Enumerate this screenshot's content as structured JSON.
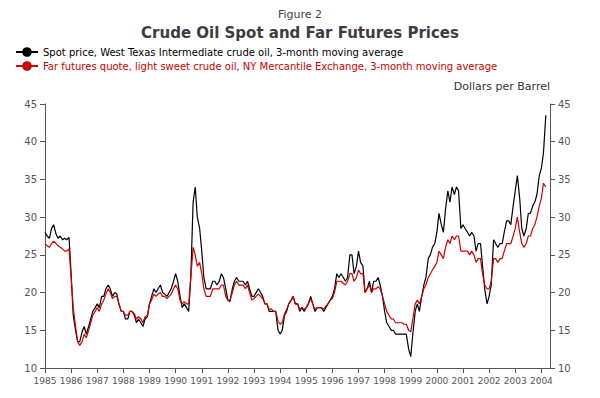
{
  "chart_data": {
    "type": "line",
    "title": "Crude Oil Spot and Far Futures Prices",
    "subtitle": "Figure 2",
    "y2label": "Dollars per Barrel",
    "xlim": [
      1985.0,
      2004.33
    ],
    "xticks": [
      1985,
      1986,
      1987,
      1988,
      1989,
      1990,
      1991,
      1992,
      1993,
      1994,
      1995,
      1996,
      1997,
      1998,
      1999,
      2000,
      2001,
      2002,
      2003,
      2004
    ],
    "ylim": [
      10,
      45
    ],
    "yticks": [
      10,
      15,
      20,
      25,
      30,
      35,
      40,
      45
    ],
    "y2lim": [
      10,
      45
    ],
    "y2ticks": [
      10,
      15,
      20,
      25,
      30,
      35,
      40,
      45
    ],
    "grid": false,
    "legend": "upper left",
    "x": [
      1985.0,
      1985.08,
      1985.17,
      1985.25,
      1985.33,
      1985.42,
      1985.5,
      1985.58,
      1985.67,
      1985.75,
      1985.83,
      1985.92,
      1986.0,
      1986.08,
      1986.17,
      1986.25,
      1986.33,
      1986.42,
      1986.5,
      1986.58,
      1986.67,
      1986.75,
      1986.83,
      1986.92,
      1987.0,
      1987.08,
      1987.17,
      1987.25,
      1987.33,
      1987.42,
      1987.5,
      1987.58,
      1987.67,
      1987.75,
      1987.83,
      1987.92,
      1988.0,
      1988.08,
      1988.17,
      1988.25,
      1988.33,
      1988.42,
      1988.5,
      1988.58,
      1988.67,
      1988.75,
      1988.83,
      1988.92,
      1989.0,
      1989.08,
      1989.17,
      1989.25,
      1989.33,
      1989.42,
      1989.5,
      1989.58,
      1989.67,
      1989.75,
      1989.83,
      1989.92,
      1990.0,
      1990.08,
      1990.17,
      1990.25,
      1990.33,
      1990.42,
      1990.5,
      1990.58,
      1990.67,
      1990.75,
      1990.83,
      1990.92,
      1991.0,
      1991.08,
      1991.17,
      1991.25,
      1991.33,
      1991.42,
      1991.5,
      1991.58,
      1991.67,
      1991.75,
      1991.83,
      1991.92,
      1992.0,
      1992.08,
      1992.17,
      1992.25,
      1992.33,
      1992.42,
      1992.5,
      1992.58,
      1992.67,
      1992.75,
      1992.83,
      1992.92,
      1993.0,
      1993.08,
      1993.17,
      1993.25,
      1993.33,
      1993.42,
      1993.5,
      1993.58,
      1993.67,
      1993.75,
      1993.83,
      1993.92,
      1994.0,
      1994.08,
      1994.17,
      1994.25,
      1994.33,
      1994.42,
      1994.5,
      1994.58,
      1994.67,
      1994.75,
      1994.83,
      1994.92,
      1995.0,
      1995.08,
      1995.17,
      1995.25,
      1995.33,
      1995.42,
      1995.5,
      1995.58,
      1995.67,
      1995.75,
      1995.83,
      1995.92,
      1996.0,
      1996.08,
      1996.17,
      1996.25,
      1996.33,
      1996.42,
      1996.5,
      1996.58,
      1996.67,
      1996.75,
      1996.83,
      1996.92,
      1997.0,
      1997.08,
      1997.17,
      1997.25,
      1997.33,
      1997.42,
      1997.5,
      1997.58,
      1997.67,
      1997.75,
      1997.83,
      1997.92,
      1998.0,
      1998.08,
      1998.17,
      1998.25,
      1998.33,
      1998.42,
      1998.5,
      1998.58,
      1998.67,
      1998.75,
      1998.83,
      1998.92,
      1999.0,
      1999.08,
      1999.17,
      1999.25,
      1999.33,
      1999.42,
      1999.5,
      1999.58,
      1999.67,
      1999.75,
      1999.83,
      1999.92,
      2000.0,
      2000.08,
      2000.17,
      2000.25,
      2000.33,
      2000.42,
      2000.5,
      2000.58,
      2000.67,
      2000.75,
      2000.83,
      2000.92,
      2001.0,
      2001.08,
      2001.17,
      2001.25,
      2001.33,
      2001.42,
      2001.5,
      2001.58,
      2001.67,
      2001.75,
      2001.83,
      2001.92,
      2002.0,
      2002.08,
      2002.17,
      2002.25,
      2002.33,
      2002.42,
      2002.5,
      2002.58,
      2002.67,
      2002.75,
      2002.83,
      2002.92,
      2003.0,
      2003.08,
      2003.17,
      2003.25,
      2003.33,
      2003.42,
      2003.5,
      2003.58,
      2003.67,
      2003.75,
      2003.83,
      2003.92,
      2004.0,
      2004.08,
      2004.17
    ],
    "series": [
      {
        "name": "Spot price, West Texas Intermediate crude oil, 3-month moving average",
        "color": "#000000",
        "values": [
          28.0,
          27.5,
          27.2,
          28.5,
          29.0,
          27.8,
          27.2,
          27.5,
          27.0,
          27.2,
          27.0,
          27.3,
          22.5,
          17.0,
          15.0,
          13.5,
          13.5,
          14.8,
          15.5,
          14.5,
          15.5,
          16.5,
          17.5,
          18.0,
          18.5,
          18.0,
          19.5,
          19.5,
          20.5,
          21.0,
          20.5,
          19.5,
          20.0,
          19.8,
          18.5,
          17.5,
          17.5,
          16.5,
          16.5,
          17.5,
          17.5,
          17.0,
          16.0,
          16.5,
          16.0,
          15.5,
          16.5,
          16.8,
          18.5,
          19.5,
          20.5,
          20.0,
          20.5,
          21.0,
          20.0,
          19.8,
          19.5,
          20.0,
          20.5,
          21.5,
          22.5,
          21.5,
          19.5,
          18.0,
          18.5,
          18.0,
          17.5,
          22.0,
          32.0,
          34.0,
          30.0,
          28.5,
          25.5,
          22.0,
          20.5,
          20.5,
          20.5,
          21.5,
          21.5,
          21.0,
          21.5,
          22.5,
          22.0,
          20.5,
          19.0,
          18.8,
          20.5,
          21.5,
          22.0,
          21.5,
          21.5,
          21.5,
          21.0,
          21.5,
          20.5,
          19.5,
          19.5,
          20.0,
          20.5,
          20.0,
          19.5,
          18.5,
          18.5,
          17.5,
          17.5,
          17.5,
          17.5,
          15.0,
          14.5,
          15.0,
          17.0,
          17.5,
          18.5,
          19.0,
          19.5,
          18.5,
          18.5,
          17.5,
          18.0,
          17.5,
          18.0,
          18.5,
          19.5,
          18.5,
          17.5,
          18.0,
          18.0,
          18.0,
          17.5,
          18.0,
          18.5,
          19.0,
          19.5,
          20.5,
          22.5,
          22.0,
          22.5,
          22.0,
          21.5,
          22.0,
          25.0,
          25.0,
          22.5,
          23.5,
          25.5,
          24.0,
          23.5,
          20.0,
          20.5,
          21.5,
          20.0,
          21.5,
          21.5,
          22.0,
          21.0,
          19.5,
          17.5,
          16.0,
          15.5,
          15.0,
          15.0,
          14.5,
          14.5,
          14.5,
          14.5,
          14.5,
          14.5,
          12.5,
          11.5,
          14.5,
          17.5,
          18.5,
          17.5,
          19.5,
          21.0,
          22.0,
          24.5,
          25.0,
          26.0,
          26.5,
          28.0,
          30.5,
          29.0,
          28.0,
          31.0,
          33.5,
          32.0,
          34.0,
          33.0,
          34.0,
          33.5,
          28.5,
          29.0,
          28.5,
          28.0,
          27.5,
          28.0,
          27.5,
          25.5,
          26.5,
          26.5,
          23.5,
          20.5,
          18.5,
          19.5,
          21.0,
          27.0,
          26.5,
          26.0,
          26.5,
          26.5,
          28.0,
          29.5,
          29.5,
          29.0,
          31.5,
          33.5,
          35.5,
          32.5,
          28.5,
          27.5,
          28.5,
          30.5,
          30.5,
          31.5,
          32.0,
          33.0,
          35.5,
          36.5,
          38.5,
          43.5
        ]
      },
      {
        "name": "Far futures quote, light sweet crude oil, NY Mercantile Exchange, 3-month moving average",
        "color": "#cc0000",
        "values": [
          26.5,
          26.2,
          26.0,
          26.5,
          26.8,
          26.5,
          26.2,
          26.0,
          25.8,
          25.5,
          25.5,
          25.8,
          22.0,
          18.0,
          15.5,
          13.5,
          13.0,
          13.5,
          14.5,
          14.0,
          15.0,
          16.0,
          17.0,
          17.5,
          18.0,
          17.5,
          18.5,
          19.0,
          19.8,
          20.5,
          20.0,
          19.2,
          19.5,
          19.5,
          18.5,
          17.5,
          17.5,
          17.0,
          17.0,
          17.5,
          17.5,
          17.2,
          16.5,
          16.8,
          16.5,
          16.0,
          16.8,
          17.0,
          18.5,
          19.0,
          19.8,
          19.5,
          19.8,
          20.0,
          19.5,
          19.5,
          19.2,
          19.5,
          19.8,
          20.5,
          21.0,
          20.5,
          19.0,
          18.5,
          18.8,
          18.5,
          18.5,
          22.0,
          26.0,
          25.0,
          23.5,
          24.0,
          22.5,
          20.5,
          19.5,
          19.5,
          19.5,
          20.5,
          20.5,
          20.5,
          20.5,
          21.0,
          21.0,
          19.5,
          19.0,
          19.0,
          20.0,
          21.0,
          21.5,
          21.0,
          21.0,
          21.0,
          20.5,
          21.0,
          20.0,
          19.0,
          19.2,
          19.5,
          19.8,
          19.5,
          19.2,
          18.5,
          18.5,
          17.8,
          17.8,
          17.5,
          17.5,
          16.2,
          15.8,
          16.0,
          17.2,
          17.8,
          18.5,
          19.0,
          19.5,
          18.5,
          18.5,
          17.8,
          18.0,
          17.8,
          18.0,
          18.5,
          19.2,
          18.5,
          17.8,
          18.0,
          18.0,
          18.0,
          17.8,
          18.2,
          18.5,
          19.0,
          19.2,
          20.0,
          21.5,
          21.5,
          21.5,
          21.2,
          21.0,
          21.5,
          22.5,
          22.5,
          21.5,
          22.0,
          23.0,
          22.5,
          22.5,
          20.0,
          20.5,
          21.0,
          20.0,
          20.5,
          20.5,
          20.8,
          20.5,
          19.5,
          18.5,
          17.5,
          17.0,
          16.5,
          16.5,
          16.0,
          16.0,
          16.0,
          16.0,
          15.8,
          15.8,
          15.0,
          14.8,
          16.5,
          18.5,
          19.0,
          18.5,
          19.5,
          20.5,
          21.0,
          22.0,
          22.5,
          23.0,
          23.5,
          24.0,
          25.5,
          25.0,
          24.5,
          26.0,
          27.0,
          26.5,
          27.5,
          27.0,
          27.5,
          27.5,
          25.5,
          25.5,
          25.5,
          25.5,
          25.0,
          25.5,
          25.0,
          24.0,
          24.5,
          24.5,
          22.5,
          21.0,
          20.5,
          20.5,
          21.5,
          24.5,
          24.5,
          24.0,
          24.5,
          24.5,
          25.5,
          26.5,
          26.5,
          26.5,
          27.5,
          28.5,
          30.0,
          28.0,
          26.5,
          26.0,
          26.5,
          27.5,
          27.5,
          28.5,
          29.0,
          30.0,
          31.5,
          32.5,
          34.5,
          34.0
        ]
      }
    ]
  }
}
